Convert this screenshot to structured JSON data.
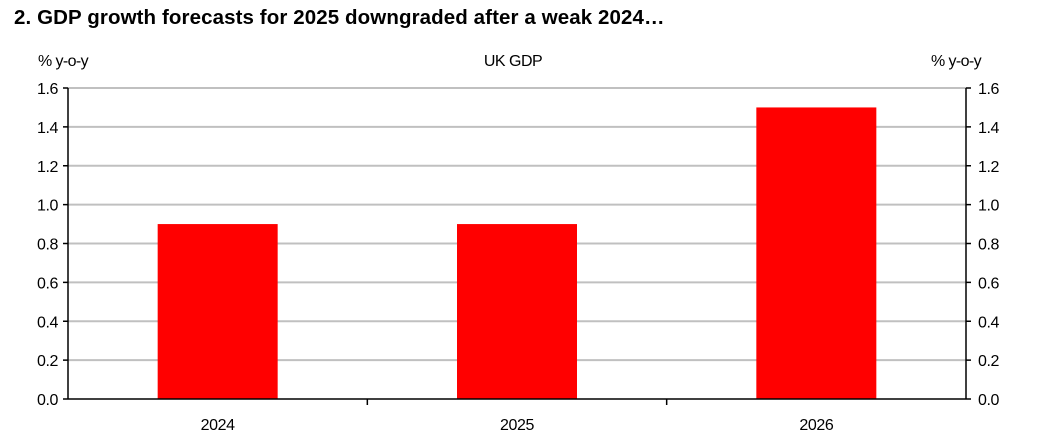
{
  "figure_title": "2. GDP growth forecasts for 2025 downgraded after a weak 2024…",
  "colors": {
    "bar": "#ff0000",
    "grid": "#c0c0c0",
    "axis": "#000000"
  },
  "chart_data": {
    "type": "bar",
    "title": "UK GDP",
    "ylabel_left": "% y-o-y",
    "ylabel_right": "% y-o-y",
    "categories": [
      "2024",
      "2025",
      "2026"
    ],
    "values": [
      0.9,
      0.9,
      1.5
    ],
    "ylim": [
      0.0,
      1.6
    ],
    "yticks": [
      "0.0",
      "0.2",
      "0.4",
      "0.6",
      "0.8",
      "1.0",
      "1.2",
      "1.4",
      "1.6"
    ],
    "grid": true,
    "legend": "none"
  }
}
